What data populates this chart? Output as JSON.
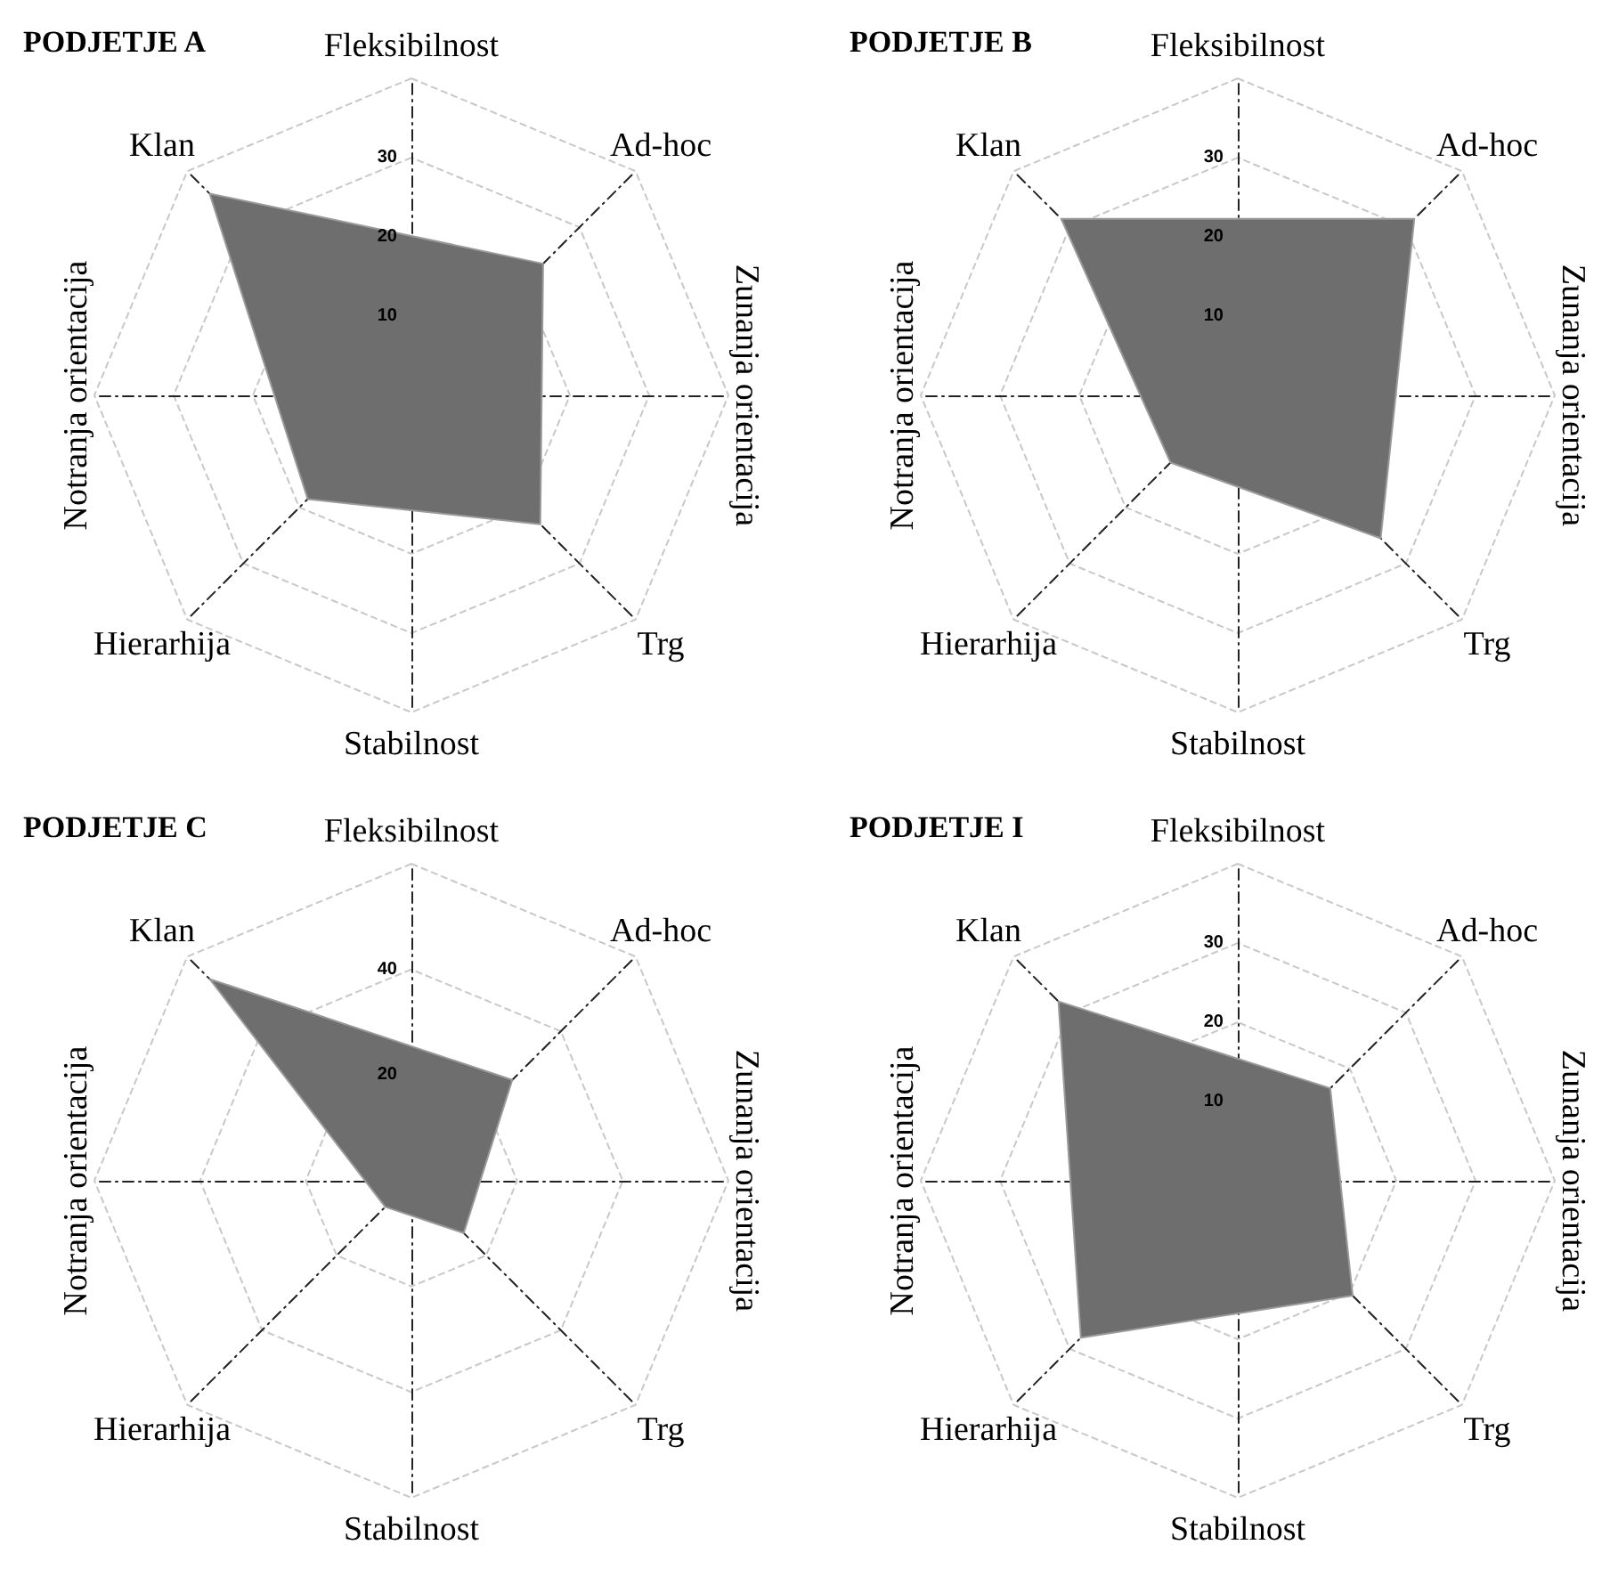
{
  "chart_data": [
    {
      "type": "radar",
      "title": "PODJETJE A",
      "categories": [
        "Fleksibilnost",
        "Ad-hoc",
        "Zunanja orientacija",
        "Trg",
        "Stabilnost",
        "Hierarhija",
        "Notranja orientacija",
        "Klan"
      ],
      "series": [
        {
          "color": "#6e6e6e",
          "values": [
            null,
            23.5,
            null,
            23,
            null,
            18.5,
            null,
            36
          ]
        }
      ],
      "ylim": [
        0,
        40
      ],
      "yticks": [
        10,
        20,
        30
      ],
      "grid": true
    },
    {
      "type": "radar",
      "title": "PODJETJE B",
      "categories": [
        "Fleksibilnost",
        "Ad-hoc",
        "Zunanja orientacija",
        "Trg",
        "Stabilnost",
        "Hierarhija",
        "Notranja orientacija",
        "Klan"
      ],
      "series": [
        {
          "color": "#6e6e6e",
          "values": [
            null,
            31.5,
            null,
            25.5,
            null,
            12,
            null,
            31.5
          ]
        }
      ],
      "ylim": [
        0,
        40
      ],
      "yticks": [
        10,
        20,
        30
      ],
      "grid": true
    },
    {
      "type": "radar",
      "title": "PODJETJE C",
      "categories": [
        "Fleksibilnost",
        "Ad-hoc",
        "Zunanja orientacija",
        "Trg",
        "Stabilnost",
        "Hierarhija",
        "Notranja orientacija",
        "Klan"
      ],
      "series": [
        {
          "color": "#6e6e6e",
          "values": [
            null,
            27,
            null,
            14,
            null,
            7,
            null,
            54
          ]
        }
      ],
      "ylim": [
        0,
        60
      ],
      "yticks": [
        20,
        40
      ],
      "grid": true
    },
    {
      "type": "radar",
      "title": "PODJETJE I",
      "categories": [
        "Fleksibilnost",
        "Ad-hoc",
        "Zunanja orientacija",
        "Trg",
        "Stabilnost",
        "Hierarhija",
        "Notranja orientacija",
        "Klan"
      ],
      "series": [
        {
          "color": "#6e6e6e",
          "values": [
            null,
            16.5,
            null,
            20.5,
            null,
            28,
            null,
            32
          ]
        }
      ],
      "ylim": [
        0,
        40
      ],
      "yticks": [
        10,
        20,
        30
      ],
      "grid": true
    }
  ]
}
